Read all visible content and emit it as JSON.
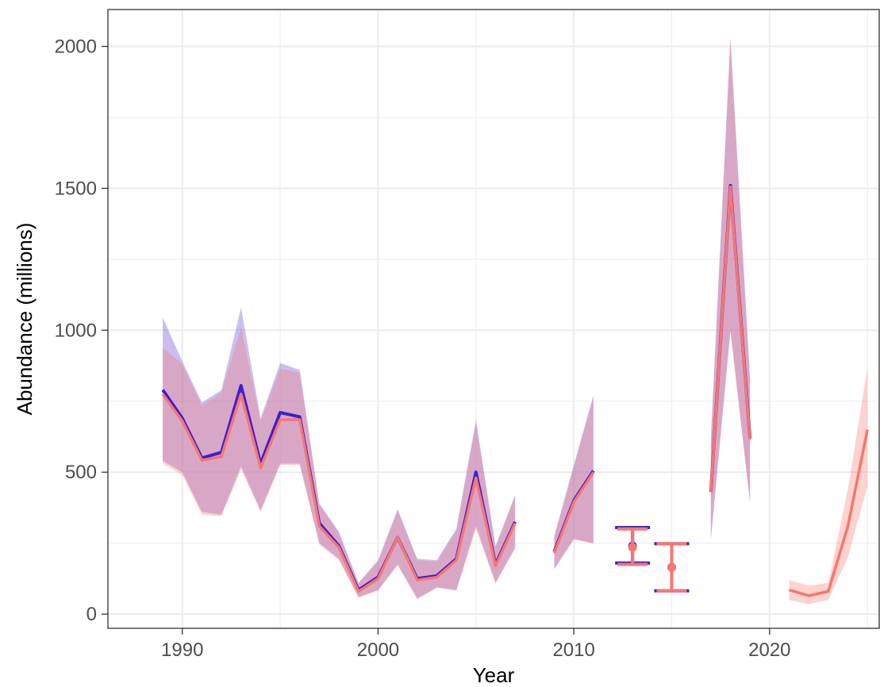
{
  "chart_data": {
    "type": "line",
    "title": "",
    "xlabel": "Year",
    "ylabel": "Abundance (millions)",
    "xlim": [
      1986.2,
      2025.6
    ],
    "ylim": [
      -50,
      2130
    ],
    "x_ticks": [
      1990,
      2000,
      2010,
      2020
    ],
    "y_ticks": [
      0,
      500,
      1000,
      1500,
      2000
    ],
    "grid": true,
    "legend": "none",
    "colors": {
      "series_a": "#3b1fd6",
      "series_a_band": "#8a6fe0",
      "series_b": "#f8766d",
      "series_b_band": "#f8766d",
      "overlap_band": "#a074c6"
    },
    "series": [
      {
        "key": "series_a",
        "segments": [
          {
            "x": [
              1989,
              1990,
              1991,
              1992,
              1993,
              1994,
              1995,
              1996,
              1997,
              1998,
              1999,
              2000,
              2001,
              2002,
              2003,
              2004,
              2005,
              2006,
              2007
            ],
            "y": [
              790,
              690,
              550,
              570,
              805,
              530,
              710,
              695,
              320,
              240,
              85,
              130,
              270,
              125,
              135,
              195,
              500,
              175,
              325
            ],
            "lower": [
              540,
              500,
              360,
              350,
              520,
              365,
              530,
              530,
              250,
              195,
              60,
              85,
              175,
              55,
              95,
              85,
              310,
              110,
              235
            ],
            "upper": [
              1045,
              890,
              745,
              790,
              1080,
              690,
              885,
              860,
              390,
              290,
              110,
              190,
              370,
              195,
              190,
              300,
              685,
              240,
              420
            ]
          },
          {
            "x": [
              2009,
              2010,
              2011
            ],
            "y": [
              220,
              400,
              505
            ],
            "lower": [
              160,
              265,
              250
            ],
            "upper": [
              275,
              525,
              770
            ]
          },
          {
            "x": [
              2017,
              2018,
              2019
            ],
            "y": [
              430,
              1510,
              620
            ],
            "lower": [
              265,
              1000,
              395
            ],
            "upper": [
              620,
              2030,
              830
            ]
          }
        ],
        "points": [
          {
            "x": 2013,
            "y": 240,
            "lower": 180,
            "upper": 305
          },
          {
            "x": 2015,
            "y": 165,
            "lower": 82,
            "upper": 248
          }
        ]
      },
      {
        "key": "series_b",
        "segments": [
          {
            "x": [
              1989,
              1990,
              1991,
              1992,
              1993,
              1994,
              1995,
              1996,
              1997,
              1998,
              1999,
              2000,
              2001,
              2002,
              2003,
              2004,
              2005,
              2006,
              2007
            ],
            "y": [
              775,
              680,
              542,
              555,
              775,
              515,
              685,
              685,
              310,
              235,
              80,
              125,
              270,
              120,
              130,
              190,
              480,
              170,
              320
            ],
            "lower": [
              530,
              490,
              350,
              345,
              510,
              360,
              525,
              525,
              245,
              190,
              58,
              82,
              172,
              52,
              92,
              82,
              300,
              108,
              230
            ],
            "upper": [
              940,
              880,
              735,
              780,
              1010,
              680,
              865,
              850,
              385,
              285,
              108,
              185,
              365,
              190,
              185,
              295,
              670,
              235,
              415
            ]
          },
          {
            "x": [
              2009,
              2010,
              2011
            ],
            "y": [
              215,
              395,
              500
            ],
            "lower": [
              158,
              262,
              248
            ],
            "upper": [
              270,
              520,
              765
            ]
          },
          {
            "x": [
              2017,
              2018,
              2019
            ],
            "y": [
              430,
              1505,
              615
            ],
            "lower": [
              262,
              995,
              392
            ],
            "upper": [
              615,
              2025,
              825
            ]
          },
          {
            "x": [
              2021,
              2022,
              2023,
              2024,
              2025
            ],
            "y": [
              85,
              65,
              80,
              310,
              650
            ],
            "lower": [
              50,
              35,
              50,
              200,
              450
            ],
            "upper": [
              120,
              100,
              110,
              440,
              870
            ]
          }
        ],
        "points": [
          {
            "x": 2013,
            "y": 235,
            "lower": 175,
            "upper": 300
          },
          {
            "x": 2015,
            "y": 165,
            "lower": 82,
            "upper": 248
          }
        ]
      }
    ]
  }
}
